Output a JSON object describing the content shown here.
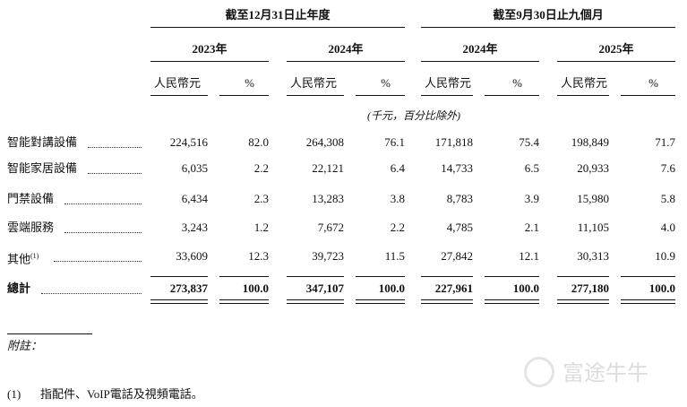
{
  "table": {
    "groups": [
      "截至12月31日止年度",
      "截至9月30日止九個月"
    ],
    "years": [
      "2023年",
      "2024年",
      "2024年",
      "2025年"
    ],
    "column_headers": [
      "人民幣元",
      "%",
      "人民幣元",
      "%",
      "人民幣元",
      "%",
      "人民幣元",
      "%"
    ],
    "unit_note": "(千元，百分比除外)",
    "rows": [
      {
        "label": "智能對講設備",
        "cells": [
          "224,516",
          "82.0",
          "264,308",
          "76.1",
          "171,818",
          "75.4",
          "198,849",
          "71.7"
        ]
      },
      {
        "label": "智能家居設備",
        "cells": [
          "6,035",
          "2.2",
          "22,121",
          "6.4",
          "14,733",
          "6.5",
          "20,933",
          "7.6"
        ]
      },
      {
        "label": "門禁設備",
        "cells": [
          "6,434",
          "2.3",
          "13,283",
          "3.8",
          "8,783",
          "3.9",
          "15,980",
          "5.8"
        ]
      },
      {
        "label": "雲端服務",
        "cells": [
          "3,243",
          "1.2",
          "7,672",
          "2.2",
          "4,785",
          "2.1",
          "11,105",
          "4.0"
        ]
      },
      {
        "label": "其他",
        "label_sup": "(1)",
        "cells": [
          "33,609",
          "12.3",
          "39,723",
          "11.5",
          "27,842",
          "12.1",
          "30,313",
          "10.9"
        ]
      }
    ],
    "total": {
      "label": "總計",
      "cells": [
        "273,837",
        "100.0",
        "347,107",
        "100.0",
        "227,961",
        "100.0",
        "277,180",
        "100.0"
      ]
    }
  },
  "notes": {
    "title": "附註：",
    "items": [
      {
        "marker": "(1)",
        "text": "指配件、VoIP電話及視頻電話。"
      }
    ]
  },
  "watermark": "富途牛牛"
}
